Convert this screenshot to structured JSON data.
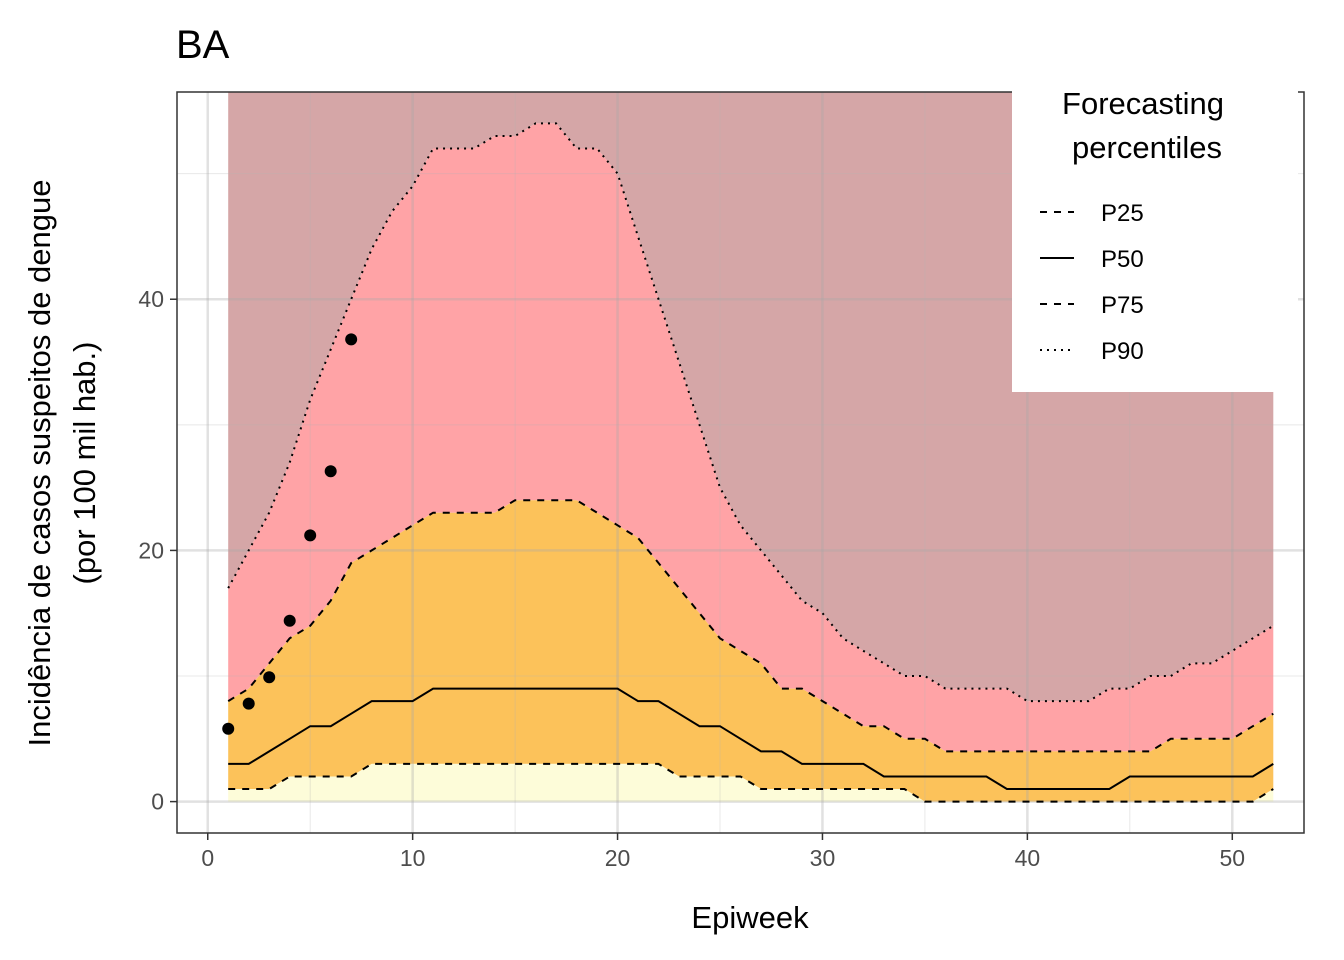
{
  "chart_data": {
    "type": "area",
    "title": "BA",
    "xlabel": "Epiweek",
    "ylabel": [
      "Incidência de casos suspeitos de dengue",
      "(por 100 mil hab.)"
    ],
    "xlim": [
      -1.5,
      53.5
    ],
    "ylim": [
      -2.5,
      56.5
    ],
    "x_ticks": [
      0,
      10,
      20,
      30,
      40,
      50
    ],
    "y_ticks": [
      0,
      20,
      40
    ],
    "grid": true,
    "legend": {
      "title": [
        "Forecasting",
        "percentiles"
      ],
      "placement": "top-right",
      "entries": [
        {
          "label": "P25",
          "linetype": "dashed"
        },
        {
          "label": "P50",
          "linetype": "solid"
        },
        {
          "label": "P75",
          "linetype": "dashed"
        },
        {
          "label": "P90",
          "linetype": "dotted"
        }
      ]
    },
    "band_colors": {
      "above_p90": "#d5a6a7",
      "p75_p90": "#ffa3a6",
      "p25_p75": "#fcc25a",
      "below_p25": "#fdfcd9"
    },
    "x": [
      1,
      2,
      3,
      4,
      5,
      6,
      7,
      8,
      9,
      10,
      11,
      12,
      13,
      14,
      15,
      16,
      17,
      18,
      19,
      20,
      21,
      22,
      23,
      24,
      25,
      26,
      27,
      28,
      29,
      30,
      31,
      32,
      33,
      34,
      35,
      36,
      37,
      38,
      39,
      40,
      41,
      42,
      43,
      44,
      45,
      46,
      47,
      48,
      49,
      50,
      51,
      52
    ],
    "series": [
      {
        "name": "P25",
        "values": [
          1,
          1,
          1,
          2,
          2,
          2,
          2,
          3,
          3,
          3,
          3,
          3,
          3,
          3,
          3,
          3,
          3,
          3,
          3,
          3,
          3,
          3,
          2,
          2,
          2,
          2,
          1,
          1,
          1,
          1,
          1,
          1,
          1,
          1,
          0,
          0,
          0,
          0,
          0,
          0,
          0,
          0,
          0,
          0,
          0,
          0,
          0,
          0,
          0,
          0,
          0,
          1
        ]
      },
      {
        "name": "P50",
        "values": [
          3,
          3,
          4,
          5,
          6,
          6,
          7,
          8,
          8,
          8,
          9,
          9,
          9,
          9,
          9,
          9,
          9,
          9,
          9,
          9,
          8,
          8,
          7,
          6,
          6,
          5,
          4,
          4,
          3,
          3,
          3,
          3,
          2,
          2,
          2,
          2,
          2,
          2,
          1,
          1,
          1,
          1,
          1,
          1,
          2,
          2,
          2,
          2,
          2,
          2,
          2,
          3
        ]
      },
      {
        "name": "P75",
        "values": [
          8,
          9,
          11,
          13,
          14,
          16,
          19,
          20,
          21,
          22,
          23,
          23,
          23,
          23,
          24,
          24,
          24,
          24,
          23,
          22,
          21,
          19,
          17,
          15,
          13,
          12,
          11,
          9,
          9,
          8,
          7,
          6,
          6,
          5,
          5,
          4,
          4,
          4,
          4,
          4,
          4,
          4,
          4,
          4,
          4,
          4,
          5,
          5,
          5,
          5,
          6,
          7
        ]
      },
      {
        "name": "P90",
        "values": [
          17,
          20,
          23,
          27,
          32,
          36,
          40,
          44,
          47,
          49,
          52,
          52,
          52,
          53,
          53,
          54,
          54,
          52,
          52,
          50,
          45,
          40,
          35,
          30,
          25,
          22,
          20,
          18,
          16,
          15,
          13,
          12,
          11,
          10,
          10,
          9,
          9,
          9,
          9,
          8,
          8,
          8,
          8,
          9,
          9,
          10,
          10,
          11,
          11,
          12,
          13,
          14
        ]
      }
    ],
    "observed": {
      "x": [
        1,
        2,
        3,
        4,
        5,
        6,
        7
      ],
      "y": [
        5.8,
        7.8,
        9.9,
        14.4,
        21.2,
        26.3,
        36.8
      ]
    }
  }
}
